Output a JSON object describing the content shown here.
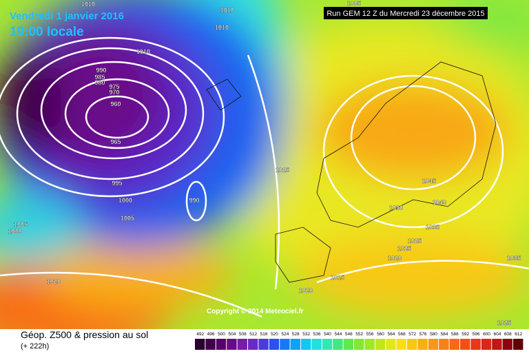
{
  "header": {
    "date": "Vendredi 1 janvier 2016",
    "time": "19:00 locale",
    "run": "Run GEM 12 Z du Mercredi 23 décembre 2015"
  },
  "footer": {
    "title": "Géop. Z500 & pression au sol",
    "lead": "(+ 222h)",
    "copyright": "Copyright © 2014 Meteociel.fr"
  },
  "scale": {
    "values": [
      492,
      496,
      500,
      504,
      508,
      512,
      516,
      520,
      524,
      528,
      532,
      536,
      540,
      544,
      548,
      552,
      556,
      560,
      564,
      568,
      572,
      576,
      580,
      584,
      588,
      592,
      596,
      600,
      604,
      608,
      612
    ],
    "colors": [
      "#2a0030",
      "#40004a",
      "#55006a",
      "#6a0a8a",
      "#7a1aa8",
      "#6a2ac8",
      "#4a3ae0",
      "#2a50f0",
      "#1a78f8",
      "#10a0f8",
      "#10c8f0",
      "#20e0e0",
      "#30e8b0",
      "#40e880",
      "#60e850",
      "#80e830",
      "#a0e820",
      "#c0e818",
      "#e0e818",
      "#f8e010",
      "#f8c810",
      "#f8b010",
      "#f89818",
      "#f88018",
      "#f86818",
      "#f05018",
      "#e83818",
      "#d82818",
      "#c01818",
      "#900010",
      "#600008"
    ]
  },
  "isobars": {
    "labels": [
      1010,
      1010,
      1010,
      1005,
      1010,
      990,
      985,
      980,
      975,
      970,
      960,
      965,
      995,
      1000,
      1005,
      990,
      1015,
      1045,
      1030,
      1040,
      1035,
      1025,
      1025,
      1020,
      1015,
      1020,
      1035,
      1020,
      1025,
      1005,
      1000
    ]
  }
}
